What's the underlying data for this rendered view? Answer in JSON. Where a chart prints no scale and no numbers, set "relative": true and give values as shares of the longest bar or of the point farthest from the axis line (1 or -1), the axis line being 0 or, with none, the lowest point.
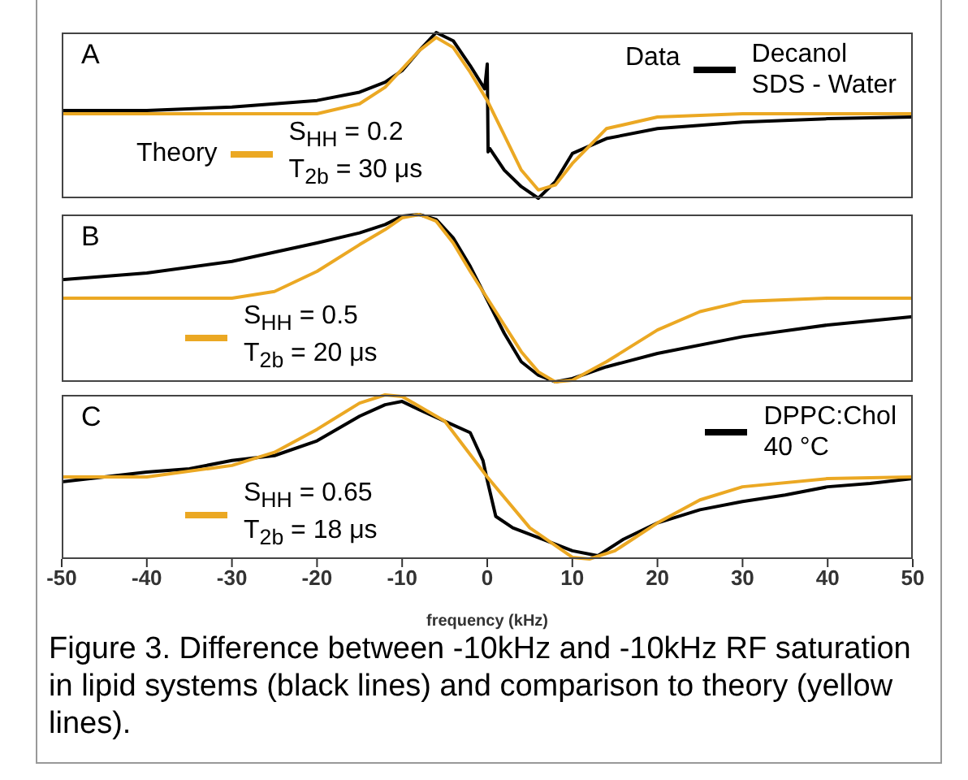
{
  "chart_data": [
    {
      "type": "line",
      "relative": true,
      "xlim": [
        -50,
        50
      ],
      "xticks": [
        -50,
        -40,
        -30,
        -20,
        -10,
        0,
        10,
        20,
        30,
        40,
        50
      ],
      "tick_labels": false,
      "legend": "top right",
      "annotations": [
        "A",
        "Data",
        "Theory"
      ],
      "series": [
        {
          "name": "Decanol\nSDS - Water",
          "color": "#000000",
          "x": [
            -50,
            -40,
            -30,
            -20,
            -15,
            -12,
            -10,
            -8,
            -6,
            -4,
            -2,
            -0.3,
            0,
            0.1,
            0.3,
            2,
            4,
            6,
            8,
            10,
            14,
            20,
            30,
            40,
            50
          ],
          "values": [
            0.53,
            0.53,
            0.55,
            0.59,
            0.64,
            0.7,
            0.77,
            0.89,
            1,
            0.95,
            0.8,
            0.66,
            0.81,
            0.28,
            0.3,
            0.17,
            0.07,
            0,
            0.1,
            0.27,
            0.36,
            0.42,
            0.46,
            0.48,
            0.49
          ]
        },
        {
          "name": "S$_{HH}$ = 0.2\nT$_{2b}$ = 30 μs",
          "color": "#eba823",
          "x": [
            -50,
            -20,
            -15,
            -12,
            -10,
            -8,
            -6,
            -4,
            -2,
            0,
            2,
            4,
            6,
            8,
            10,
            14,
            20,
            30,
            50
          ],
          "values": [
            0.51,
            0.51,
            0.57,
            0.67,
            0.78,
            0.89,
            0.97,
            0.91,
            0.76,
            0.59,
            0.38,
            0.17,
            0.05,
            0.08,
            0.21,
            0.42,
            0.49,
            0.51,
            0.51
          ]
        }
      ]
    },
    {
      "type": "line",
      "relative": true,
      "xlim": [
        -50,
        50
      ],
      "xticks": [
        -50,
        -40,
        -30,
        -20,
        -10,
        0,
        10,
        20,
        30,
        40,
        50
      ],
      "tick_labels": false,
      "legend": "top right",
      "annotations": [
        "B"
      ],
      "series": [
        {
          "color": "#000000",
          "x": [
            -50,
            -40,
            -30,
            -20,
            -15,
            -12,
            -10,
            -8,
            -6,
            -4,
            -2,
            0,
            2,
            4,
            6,
            8,
            10,
            14,
            20,
            30,
            40,
            50
          ],
          "values": [
            0.61,
            0.65,
            0.72,
            0.83,
            0.89,
            0.94,
            0.99,
            1,
            0.97,
            0.86,
            0.69,
            0.49,
            0.29,
            0.12,
            0.04,
            0,
            0.02,
            0.09,
            0.17,
            0.27,
            0.34,
            0.39
          ]
        },
        {
          "name": "S$_{HH}$ = 0.5\nT$_{2b}$ = 20 μs",
          "color": "#eba823",
          "x": [
            -50,
            -30,
            -25,
            -20,
            -15,
            -12,
            -10,
            -8,
            -6,
            -4,
            -2,
            0,
            2,
            4,
            6,
            8,
            10,
            14,
            20,
            25,
            30,
            40,
            50
          ],
          "values": [
            0.5,
            0.5,
            0.54,
            0.66,
            0.82,
            0.91,
            0.98,
            1,
            0.96,
            0.83,
            0.66,
            0.5,
            0.34,
            0.18,
            0.06,
            0,
            0.01,
            0.12,
            0.31,
            0.42,
            0.48,
            0.5,
            0.5
          ]
        }
      ]
    },
    {
      "type": "line",
      "relative": true,
      "xlim": [
        -50,
        50
      ],
      "xticks": [
        -50,
        -40,
        -30,
        -20,
        -10,
        0,
        10,
        20,
        30,
        40,
        50
      ],
      "tick_labels": "x",
      "legend": "top right",
      "xlabel": "frequency (kHz)",
      "annotations": [
        "C",
        "Figure 3.  Difference between -10kHz and -10kHz RF saturation in lipid systems (black lines) and comparison to theory (yellow lines)."
      ],
      "series": [
        {
          "name": "DPPC:Chol\n40 °C",
          "color": "#000000",
          "x": [
            -50,
            -45,
            -40,
            -35,
            -30,
            -25,
            -20,
            -15,
            -12,
            -10,
            -8,
            -5,
            -2,
            -0.5,
            0,
            1,
            3,
            6,
            10,
            13,
            16,
            20,
            25,
            30,
            35,
            40,
            45,
            50
          ],
          "values": [
            0.47,
            0.5,
            0.53,
            0.55,
            0.6,
            0.63,
            0.72,
            0.87,
            0.94,
            0.96,
            0.91,
            0.84,
            0.77,
            0.6,
            0.48,
            0.26,
            0.19,
            0.13,
            0.05,
            0.02,
            0.12,
            0.22,
            0.3,
            0.35,
            0.39,
            0.44,
            0.46,
            0.49
          ]
        },
        {
          "name": "S$_{HH}$ = 0.65\nT$_{2b}$ = 18 μs",
          "color": "#eba823",
          "x": [
            -50,
            -40,
            -30,
            -25,
            -20,
            -15,
            -12,
            -10,
            -5,
            0,
            5,
            10,
            12,
            15,
            20,
            25,
            30,
            40,
            50
          ],
          "values": [
            0.5,
            0.5,
            0.57,
            0.65,
            0.79,
            0.95,
            1,
            0.99,
            0.84,
            0.5,
            0.19,
            0.01,
            0,
            0.05,
            0.22,
            0.36,
            0.44,
            0.49,
            0.5
          ]
        }
      ]
    }
  ]
}
